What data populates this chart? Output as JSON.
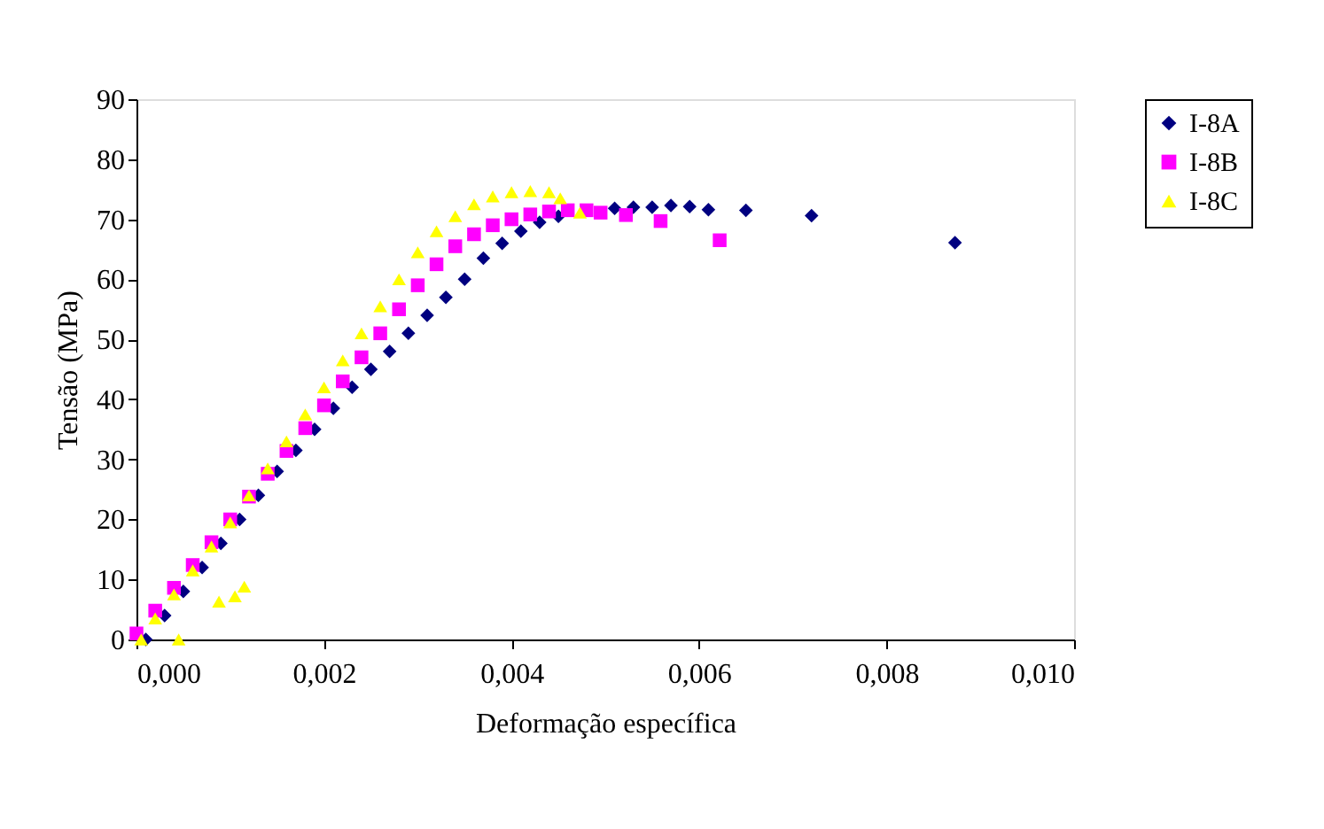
{
  "chart_data": {
    "type": "scatter",
    "xlabel": "Deformação específica",
    "ylabel": "Tensão (MPa)",
    "xlim": [
      0,
      0.01
    ],
    "ylim": [
      0,
      90
    ],
    "xticks": [
      {
        "value": 0,
        "label": "0,000"
      },
      {
        "value": 0.002,
        "label": "0,002"
      },
      {
        "value": 0.004,
        "label": "0,004"
      },
      {
        "value": 0.006,
        "label": "0,006"
      },
      {
        "value": 0.008,
        "label": "0,008"
      },
      {
        "value": 0.01,
        "label": "0,010"
      }
    ],
    "yticks": [
      0,
      10,
      20,
      30,
      40,
      50,
      60,
      70,
      80,
      90
    ],
    "grid": false,
    "legend": "right",
    "series": [
      {
        "name": "I-8A",
        "color": "#000080",
        "marker": "diamond",
        "x": [
          0.0001,
          0.0003,
          0.0005,
          0.0007,
          0.0009,
          0.0011,
          0.0013,
          0.0015,
          0.0017,
          0.0019,
          0.0021,
          0.0023,
          0.0025,
          0.0027,
          0.0029,
          0.0031,
          0.0033,
          0.0035,
          0.0037,
          0.0039,
          0.0041,
          0.0043,
          0.0045,
          0.0051,
          0.0053,
          0.0055,
          0.0057,
          0.0059,
          0.0061,
          0.0065,
          0.0072,
          0.00873
        ],
        "values": [
          0,
          4,
          8,
          12,
          16,
          20,
          24,
          28,
          31.5,
          35,
          38.5,
          42,
          45,
          48,
          51,
          54,
          57,
          60,
          63.5,
          66,
          68,
          69.5,
          70.5,
          71.8,
          72,
          72,
          72.3,
          72.1,
          71.6,
          71.5,
          70.6,
          66.1
        ]
      },
      {
        "name": "I-8B",
        "color": "#ff00ff",
        "marker": "square",
        "x": [
          0,
          0.0002,
          0.0004,
          0.0006,
          0.0008,
          0.001,
          0.0012,
          0.0014,
          0.0016,
          0.0018,
          0.002,
          0.0022,
          0.0024,
          0.0026,
          0.0028,
          0.003,
          0.0032,
          0.0034,
          0.0036,
          0.0038,
          0.004,
          0.0042,
          0.0044,
          0.0046,
          0.0048,
          0.00495,
          0.00522,
          0.00559,
          0.00622
        ],
        "values": [
          1,
          4.8,
          8.6,
          12.4,
          16.2,
          20,
          23.8,
          27.6,
          31.4,
          35.2,
          39,
          43,
          47,
          51,
          55,
          59,
          62.5,
          65.5,
          67.5,
          69,
          70,
          70.8,
          71.3,
          71.5,
          71.5,
          71.1,
          70.7,
          69.7,
          66.5
        ]
      },
      {
        "name": "I-8C",
        "color": "#ffff00",
        "marker": "triangle",
        "x": [
          5e-05,
          0.0002,
          0.0004,
          0.0006,
          0.0008,
          0.001,
          0.0012,
          0.0014,
          0.0016,
          0.0018,
          0.002,
          0.0022,
          0.0024,
          0.0026,
          0.0028,
          0.003,
          0.0032,
          0.0034,
          0.0036,
          0.0038,
          0.004,
          0.0042,
          0.0044,
          0.00452,
          0.00473,
          0.00045,
          0.00088,
          0.00105,
          0.00115
        ],
        "values": [
          0,
          3.5,
          7.5,
          11.5,
          15.5,
          19.5,
          24,
          28.5,
          33,
          37.5,
          42,
          46.5,
          51,
          55.5,
          60,
          64.5,
          68,
          70.5,
          72.5,
          73.8,
          74.5,
          74.7,
          74.5,
          73.5,
          71.1,
          0,
          6.3,
          7.2,
          8.8
        ]
      }
    ]
  }
}
